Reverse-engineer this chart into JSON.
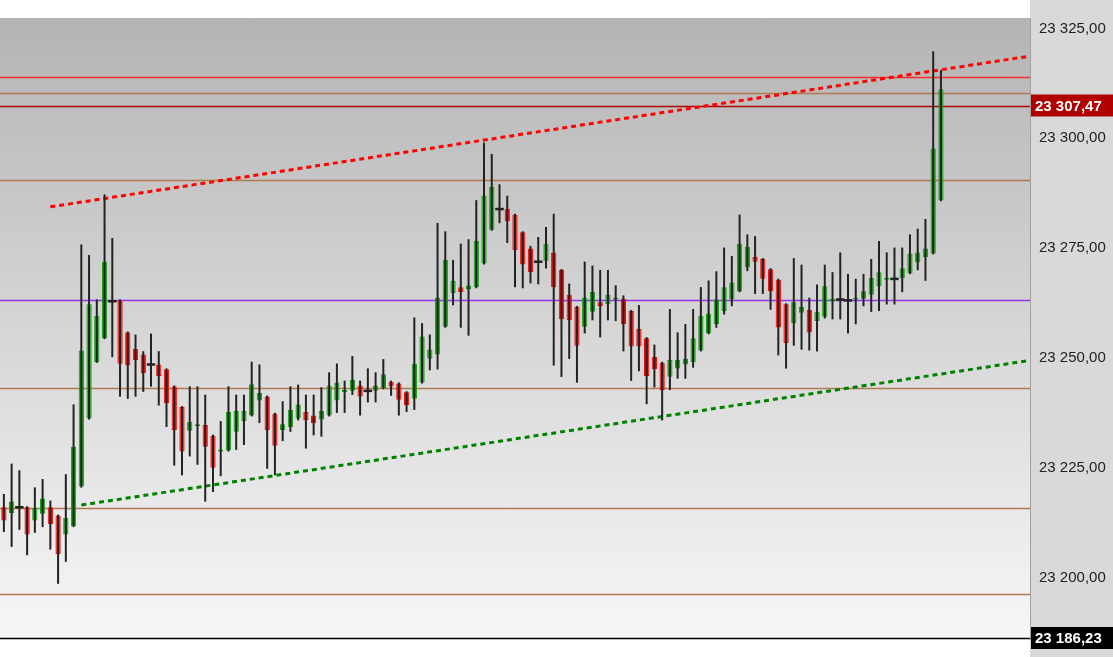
{
  "chart_data": {
    "type": "candlestick",
    "categories": [
      null,
      null,
      null,
      null,
      null,
      null,
      null,
      null,
      null,
      null,
      null,
      null,
      null,
      null,
      null,
      null,
      null,
      null,
      null,
      null,
      null,
      null,
      null,
      null,
      null,
      null,
      null,
      null,
      null,
      null,
      null,
      null,
      null,
      null,
      null,
      null,
      null,
      null,
      null,
      null,
      null,
      null,
      null,
      null,
      null,
      null,
      null,
      null,
      null,
      null,
      null,
      null,
      null,
      null,
      null,
      null,
      null,
      null,
      null,
      null,
      null,
      null,
      null,
      null,
      null,
      null,
      null,
      null,
      null,
      null,
      null,
      null,
      null,
      null,
      null,
      null,
      null,
      null,
      null,
      null,
      null,
      null,
      null,
      null,
      null,
      null,
      null,
      null,
      null,
      null,
      null,
      null,
      null,
      null,
      null,
      null,
      null,
      null,
      null,
      null,
      null,
      null,
      null,
      null,
      null,
      null,
      null,
      null,
      null,
      null,
      null,
      null,
      null,
      null,
      null,
      null,
      null,
      null,
      null,
      null,
      null,
      null,
      null,
      null,
      null,
      null,
      null,
      null,
      null,
      null,
      null,
      null,
      null
    ],
    "ohlc": [
      [
        23216.0,
        23218.8,
        23210.6,
        23213.0
      ],
      [
        23214.7,
        23225.7,
        23207.2,
        23217.3
      ],
      [
        23216.0,
        23224.2,
        23211.1,
        23216.0
      ],
      [
        23216.0,
        23216.0,
        23205.3,
        23209.8
      ],
      [
        23213.0,
        23220.3,
        23210.4,
        23215.8
      ],
      [
        23214.5,
        23222.2,
        23211.7,
        23218.0
      ],
      [
        23216.0,
        23217.3,
        23206.6,
        23212.1
      ],
      [
        23214.1,
        23214.1,
        23198.8,
        23205.3
      ],
      [
        23209.8,
        23223.3,
        23203.8,
        23213.6
      ],
      [
        23211.7,
        23239.2,
        23211.7,
        23229.8
      ],
      [
        23220.7,
        23275.6,
        23220.7,
        23251.7
      ],
      [
        23236.2,
        23273.2,
        23236.2,
        23262.2
      ],
      [
        23249.1,
        23263.1,
        23249.1,
        23259.6
      ],
      [
        23254.5,
        23287.0,
        23254.5,
        23271.9
      ],
      [
        23262.9,
        23277.1,
        23250.4,
        23262.9
      ],
      [
        23263.1,
        23263.1,
        23241.4,
        23248.7
      ],
      [
        23255.8,
        23255.8,
        23240.9,
        23248.3
      ],
      [
        23252.1,
        23255.1,
        23241.4,
        23249.5
      ],
      [
        23250.8,
        23251.3,
        23242.5,
        23246.5
      ],
      [
        23248.5,
        23255.3,
        23243.7,
        23248.5
      ],
      [
        23248.5,
        23251.3,
        23239.4,
        23245.9
      ],
      [
        23247.4,
        23247.4,
        23234.5,
        23239.7
      ],
      [
        23243.5,
        23243.5,
        23225.7,
        23233.6
      ],
      [
        23238.8,
        23238.8,
        23223.5,
        23228.7
      ],
      [
        23233.4,
        23243.3,
        23227.8,
        23235.4
      ],
      [
        23234.5,
        23243.3,
        23225.9,
        23234.9
      ],
      [
        23234.7,
        23241.4,
        23217.5,
        23229.8
      ],
      [
        23232.3,
        23232.3,
        23219.7,
        23225.0
      ],
      [
        23228.7,
        23235.4,
        23223.3,
        23229.1
      ],
      [
        23228.9,
        23243.3,
        23228.9,
        23237.7
      ],
      [
        23233.2,
        23241.4,
        23229.3,
        23237.9
      ],
      [
        23235.6,
        23241.4,
        23230.4,
        23237.9
      ],
      [
        23236.9,
        23248.9,
        23236.9,
        23244.0
      ],
      [
        23240.3,
        23248.3,
        23235.4,
        23242.0
      ],
      [
        23241.2,
        23241.2,
        23225.0,
        23233.6
      ],
      [
        23237.3,
        23237.3,
        23223.5,
        23230.0
      ],
      [
        23233.6,
        23239.9,
        23231.3,
        23234.9
      ],
      [
        23234.3,
        23243.3,
        23233.4,
        23238.2
      ],
      [
        23236.2,
        23243.7,
        23236.0,
        23239.4
      ],
      [
        23237.7,
        23241.4,
        23229.6,
        23235.8
      ],
      [
        23236.9,
        23241.4,
        23232.6,
        23235.1
      ],
      [
        23236.0,
        23243.1,
        23232.3,
        23237.9
      ],
      [
        23236.9,
        23246.5,
        23236.9,
        23243.7
      ],
      [
        23240.3,
        23248.5,
        23237.7,
        23244.4
      ],
      [
        23242.2,
        23244.6,
        23237.7,
        23242.7
      ],
      [
        23242.5,
        23250.2,
        23241.8,
        23245.0
      ],
      [
        23243.7,
        23244.6,
        23237.1,
        23241.2
      ],
      [
        23242.5,
        23247.4,
        23240.1,
        23242.5
      ],
      [
        23242.5,
        23246.5,
        23240.1,
        23243.7
      ],
      [
        23243.1,
        23249.5,
        23243.1,
        23246.3
      ],
      [
        23244.6,
        23244.6,
        23241.6,
        23243.5
      ],
      [
        23244.2,
        23244.2,
        23237.1,
        23240.5
      ],
      [
        23242.2,
        23242.2,
        23237.9,
        23239.2
      ],
      [
        23240.7,
        23259.0,
        23238.4,
        23248.7
      ],
      [
        23244.4,
        23257.7,
        23244.4,
        23254.9
      ],
      [
        23249.8,
        23255.1,
        23247.4,
        23251.9
      ],
      [
        23250.8,
        23280.5,
        23247.6,
        23263.7
      ],
      [
        23257.1,
        23278.6,
        23257.1,
        23272.3
      ],
      [
        23264.8,
        23272.1,
        23262.2,
        23267.6
      ],
      [
        23266.1,
        23275.8,
        23257.1,
        23265.0
      ],
      [
        23265.7,
        23276.8,
        23255.3,
        23266.5
      ],
      [
        23266.1,
        23285.7,
        23266.1,
        23276.6
      ],
      [
        23271.5,
        23298.8,
        23271.5,
        23287.0
      ],
      [
        23279.2,
        23296.2,
        23279.2,
        23288.9
      ],
      [
        23283.9,
        23289.3,
        23280.9,
        23283.9
      ],
      [
        23283.9,
        23286.7,
        23276.4,
        23281.1
      ],
      [
        23282.6,
        23282.6,
        23266.3,
        23274.5
      ],
      [
        23278.6,
        23278.6,
        23266.1,
        23271.3
      ],
      [
        23274.9,
        23275.3,
        23267.2,
        23269.5
      ],
      [
        23271.9,
        23277.3,
        23267.0,
        23271.9
      ],
      [
        23272.1,
        23279.6,
        23270.6,
        23276.0
      ],
      [
        23274.0,
        23282.6,
        23248.5,
        23266.1
      ],
      [
        23270.0,
        23270.0,
        23245.9,
        23258.8
      ],
      [
        23264.4,
        23266.7,
        23250.0,
        23258.6
      ],
      [
        23261.6,
        23261.6,
        23244.6,
        23252.8
      ],
      [
        23257.1,
        23271.7,
        23255.8,
        23263.7
      ],
      [
        23260.5,
        23270.8,
        23258.8,
        23265.0
      ],
      [
        23262.7,
        23269.8,
        23254.9,
        23261.8
      ],
      [
        23262.2,
        23269.8,
        23258.8,
        23264.4
      ],
      [
        23263.3,
        23266.3,
        23258.6,
        23263.7
      ],
      [
        23263.5,
        23264.0,
        23251.7,
        23257.7
      ],
      [
        23260.7,
        23260.7,
        23245.0,
        23252.6
      ],
      [
        23256.6,
        23261.8,
        23247.2,
        23252.6
      ],
      [
        23254.5,
        23254.5,
        23239.7,
        23245.9
      ],
      [
        23250.2,
        23252.8,
        23243.5,
        23247.4
      ],
      [
        23248.9,
        23248.9,
        23236.0,
        23242.7
      ],
      [
        23245.7,
        23260.9,
        23242.9,
        23249.5
      ],
      [
        23247.6,
        23255.6,
        23245.5,
        23249.5
      ],
      [
        23248.5,
        23257.5,
        23245.5,
        23249.8
      ],
      [
        23249.1,
        23260.9,
        23248.0,
        23254.5
      ],
      [
        23251.7,
        23265.9,
        23251.7,
        23259.6
      ],
      [
        23255.6,
        23267.4,
        23255.6,
        23260.1
      ],
      [
        23257.7,
        23269.5,
        23257.1,
        23263.3
      ],
      [
        23260.7,
        23274.9,
        23260.1,
        23266.1
      ],
      [
        23263.3,
        23273.0,
        23262.0,
        23267.2
      ],
      [
        23265.2,
        23282.4,
        23265.2,
        23276.0
      ],
      [
        23270.6,
        23277.9,
        23270.0,
        23275.3
      ],
      [
        23273.0,
        23277.5,
        23264.8,
        23271.9
      ],
      [
        23272.5,
        23272.5,
        23264.8,
        23268.0
      ],
      [
        23270.2,
        23270.2,
        23261.2,
        23265.2
      ],
      [
        23267.8,
        23267.8,
        23250.8,
        23256.9
      ],
      [
        23262.2,
        23262.2,
        23247.8,
        23253.4
      ],
      [
        23257.9,
        23272.5,
        23253.0,
        23262.7
      ],
      [
        23260.3,
        23271.0,
        23252.1,
        23261.6
      ],
      [
        23260.9,
        23263.5,
        23251.9,
        23255.8
      ],
      [
        23258.4,
        23266.5,
        23251.7,
        23260.5
      ],
      [
        23259.4,
        23271.0,
        23259.2,
        23266.3
      ],
      [
        23262.9,
        23269.3,
        23259.0,
        23263.5
      ],
      [
        23263.3,
        23273.8,
        23259.0,
        23263.3
      ],
      [
        23263.1,
        23268.9,
        23255.8,
        23263.1
      ],
      [
        23263.3,
        23267.8,
        23257.9,
        23263.7
      ],
      [
        23263.5,
        23268.9,
        23262.0,
        23265.2
      ],
      [
        23264.4,
        23272.3,
        23260.7,
        23268.2
      ],
      [
        23266.3,
        23276.4,
        23260.9,
        23269.5
      ],
      [
        23267.8,
        23273.8,
        23262.4,
        23268.2
      ],
      [
        23268.0,
        23274.9,
        23262.4,
        23268.0
      ],
      [
        23268.2,
        23274.9,
        23265.2,
        23270.4
      ],
      [
        23269.3,
        23277.9,
        23269.3,
        23273.8
      ],
      [
        23271.7,
        23279.2,
        23270.2,
        23274.0
      ],
      [
        23273.0,
        23281.4,
        23267.8,
        23274.9
      ],
      [
        23273.8,
        23319.6,
        23273.8,
        23297.7
      ],
      [
        23285.9,
        23315.3,
        23285.9,
        23311.2
      ],
      null,
      null,
      null,
      null,
      null,
      null,
      null,
      null,
      null,
      null,
      null
    ],
    "colors": [
      "#ff0000",
      "#0fa00f",
      "#222222",
      "#ff0000",
      "#0fa00f",
      "#0fa00f",
      "#ff0000",
      "#ff0000",
      "#0fa00f",
      "#0fa00f",
      "#0fa00f",
      "#0fa00f",
      "#0fa00f",
      "#0fa00f",
      "#222222",
      "#ff0000",
      "#ff0000",
      "#ff0000",
      "#ff0000",
      "#222222",
      "#ff0000",
      "#ff0000",
      "#ff0000",
      "#ff0000",
      "#0fa00f",
      "#0fa00f",
      "#ff0000",
      "#ff0000",
      "#0fa00f",
      "#0fa00f",
      "#0fa00f",
      "#0fa00f",
      "#0fa00f",
      "#0fa00f",
      "#ff0000",
      "#ff0000",
      "#0fa00f",
      "#0fa00f",
      "#0fa00f",
      "#ff0000",
      "#ff0000",
      "#0fa00f",
      "#0fa00f",
      "#0fa00f",
      "#0fa00f",
      "#0fa00f",
      "#ff0000",
      "#222222",
      "#0fa00f",
      "#0fa00f",
      "#ff0000",
      "#ff0000",
      "#ff0000",
      "#0fa00f",
      "#0fa00f",
      "#0fa00f",
      "#0fa00f",
      "#0fa00f",
      "#0fa00f",
      "#ff0000",
      "#0fa00f",
      "#0fa00f",
      "#0fa00f",
      "#0fa00f",
      "#222222",
      "#ff0000",
      "#ff0000",
      "#ff0000",
      "#ff0000",
      "#222222",
      "#0fa00f",
      "#ff0000",
      "#ff0000",
      "#ff0000",
      "#ff0000",
      "#0fa00f",
      "#0fa00f",
      "#ff0000",
      "#0fa00f",
      "#0fa00f",
      "#ff0000",
      "#ff0000",
      "#ff0000",
      "#ff0000",
      "#ff0000",
      "#ff0000",
      "#0fa00f",
      "#0fa00f",
      "#0fa00f",
      "#0fa00f",
      "#0fa00f",
      "#0fa00f",
      "#0fa00f",
      "#0fa00f",
      "#0fa00f",
      "#0fa00f",
      "#0fa00f",
      "#ff0000",
      "#ff0000",
      "#ff0000",
      "#ff0000",
      "#ff0000",
      "#0fa00f",
      "#0fa00f",
      "#ff0000",
      "#0fa00f",
      "#0fa00f",
      "#0fa00f",
      "#222222",
      "#222222",
      "#0fa00f",
      "#0fa00f",
      "#0fa00f",
      "#0fa00f",
      "#0fa00f",
      "#222222",
      "#0fa00f",
      "#0fa00f",
      "#0fa00f",
      "#0fa00f",
      "#0fa00f",
      "#0fa00f",
      null,
      null,
      null,
      null,
      null,
      null,
      null,
      null,
      null,
      null,
      null
    ],
    "series": [
      {
        "type": "line",
        "color": "#ff0000",
        "line_style": "dotted",
        "values": [
          null,
          null,
          null,
          null,
          null,
          null,
          23284.4,
          null,
          null,
          null,
          null,
          null,
          null,
          null,
          null,
          null,
          null,
          null,
          null,
          null,
          null,
          null,
          null,
          null,
          null,
          null,
          null,
          null,
          null,
          null,
          null,
          null,
          null,
          null,
          null,
          null,
          null,
          null,
          null,
          null,
          null,
          null,
          null,
          null,
          null,
          null,
          null,
          null,
          null,
          null,
          null,
          null,
          null,
          null,
          null,
          null,
          null,
          null,
          null,
          null,
          null,
          null,
          null,
          null,
          null,
          null,
          null,
          null,
          null,
          null,
          null,
          null,
          null,
          null,
          null,
          null,
          null,
          null,
          null,
          null,
          null,
          null,
          null,
          null,
          null,
          null,
          null,
          null,
          null,
          null,
          null,
          null,
          null,
          null,
          null,
          null,
          null,
          null,
          null,
          null,
          null,
          null,
          null,
          null,
          null,
          null,
          null,
          null,
          null,
          null,
          null,
          null,
          null,
          null,
          null,
          null,
          null,
          null,
          null,
          null,
          null,
          null,
          null,
          null,
          null,
          null,
          null,
          null,
          null,
          null,
          null,
          null,
          23318.6
        ]
      },
      {
        "type": "line",
        "color": "#008000",
        "line_style": "dotted",
        "values": [
          null,
          null,
          null,
          null,
          null,
          null,
          null,
          null,
          null,
          null,
          23216.5,
          null,
          null,
          null,
          null,
          null,
          null,
          null,
          null,
          null,
          null,
          null,
          null,
          null,
          null,
          null,
          null,
          null,
          null,
          null,
          null,
          null,
          null,
          null,
          null,
          null,
          null,
          null,
          null,
          null,
          null,
          null,
          null,
          null,
          null,
          null,
          null,
          null,
          null,
          null,
          null,
          null,
          null,
          null,
          null,
          null,
          null,
          null,
          null,
          null,
          null,
          null,
          null,
          null,
          null,
          null,
          null,
          null,
          null,
          null,
          null,
          null,
          null,
          null,
          null,
          null,
          null,
          null,
          null,
          null,
          null,
          null,
          null,
          null,
          null,
          null,
          null,
          null,
          null,
          null,
          null,
          null,
          null,
          null,
          null,
          null,
          null,
          null,
          null,
          null,
          null,
          null,
          null,
          null,
          null,
          null,
          null,
          null,
          null,
          null,
          null,
          null,
          null,
          null,
          null,
          null,
          null,
          null,
          null,
          null,
          null,
          null,
          null,
          null,
          null,
          null,
          null,
          null,
          null,
          null,
          null,
          null,
          23249.3
        ]
      }
    ],
    "ref_lines": [
      {
        "axis": "y",
        "value": 23314.0,
        "color": "#ff2a2a"
      },
      {
        "axis": "y",
        "value": 23307.47,
        "label": "23 307,47",
        "color": "#b00000"
      },
      {
        "axis": "y",
        "value": 23310.4,
        "color": "#b07a50"
      },
      {
        "axis": "y",
        "value": 23290.4,
        "color": "#b07a50"
      },
      {
        "axis": "y",
        "value": 23263.1,
        "color": "#9933ee"
      },
      {
        "axis": "y",
        "value": 23243.1,
        "color": "#b07a50"
      },
      {
        "axis": "y",
        "value": 23215.8,
        "color": "#b07a50"
      },
      {
        "axis": "y",
        "value": 23196.2,
        "color": "#b07a50"
      },
      {
        "axis": "y",
        "value": 23186.23,
        "label": "23 186,23",
        "color": "#000000"
      }
    ],
    "ylim": [
      23186.0,
      23327.4
    ],
    "yticks": [
      {
        "value": 23200,
        "label": "23 200,00"
      },
      {
        "value": 23225,
        "label": "23 225,00"
      },
      {
        "value": 23250,
        "label": "23 250,00"
      },
      {
        "value": 23275,
        "label": "23 275,00"
      },
      {
        "value": 23300,
        "label": "23 300,00"
      },
      {
        "value": 23325,
        "label": "23 325,00"
      }
    ],
    "tick_labels": "y",
    "grid": false,
    "legend": false
  }
}
